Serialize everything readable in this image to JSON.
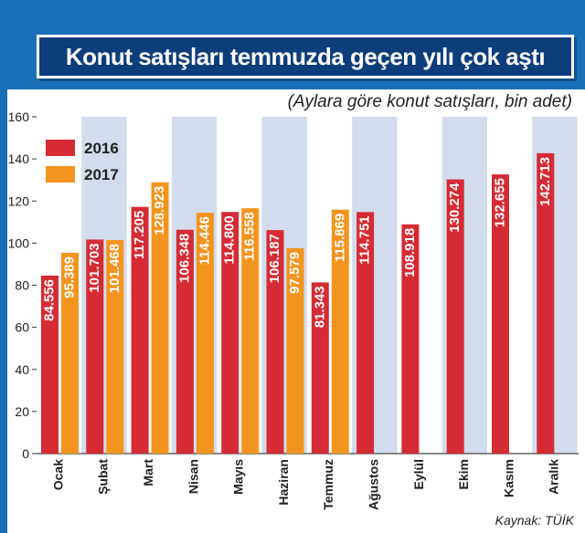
{
  "title": "Konut satışları temmuzda geçen yılı çok aştı",
  "subtitle": "(Aylara göre konut satışları, bin adet)",
  "source": "Kaynak: TÜİK",
  "colors": {
    "frame": "#1b6fb6",
    "title_bg": "#0d3d7a",
    "series_2016": "#d52b34",
    "series_2017": "#f3941f",
    "band": "#d2dcec"
  },
  "chart_data": {
    "type": "bar",
    "title": "Konut satışları temmuzda geçen yılı çok aştı",
    "subtitle": "(Aylara göre konut satışları, bin adet)",
    "categories": [
      "Ocak",
      "Şubat",
      "Mart",
      "Nisan",
      "Mayıs",
      "Haziran",
      "Temmuz",
      "Ağustos",
      "Eylül",
      "Ekim",
      "Kasım",
      "Aralık"
    ],
    "series": [
      {
        "name": "2016",
        "color": "#d52b34",
        "values": [
          84.556,
          101.703,
          117.205,
          106.348,
          114.8,
          106.187,
          81.343,
          114.751,
          108.918,
          130.274,
          132.655,
          142.713
        ],
        "labels": [
          "84.556",
          "101.703",
          "117.205",
          "106.348",
          "114.800",
          "106.187",
          "81.343",
          "114.751",
          "108.918",
          "130.274",
          "132.655",
          "142.713"
        ]
      },
      {
        "name": "2017",
        "color": "#f3941f",
        "values": [
          95.389,
          101.468,
          128.923,
          114.446,
          116.558,
          97.579,
          115.869,
          null,
          null,
          null,
          null,
          null
        ],
        "labels": [
          "95.389",
          "101.468",
          "128.923",
          "114.446",
          "116.558",
          "97.579",
          "115.869",
          null,
          null,
          null,
          null,
          null
        ]
      }
    ],
    "ylim": [
      0,
      160
    ],
    "yticks": [
      "0",
      "20",
      "40",
      "60",
      "80",
      "100",
      "120",
      "140",
      "160"
    ],
    "legend_position": "top-left",
    "source": "Kaynak: TÜİK"
  }
}
